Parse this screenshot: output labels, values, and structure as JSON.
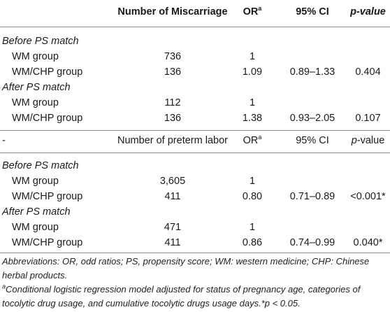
{
  "header": {
    "col1": "Number of Miscarriage",
    "col2": "OR",
    "col2_sup": "a",
    "col3": "95% CI",
    "col4": "p-value"
  },
  "miscarriage": {
    "before_label": "Before PS match",
    "before_rows": [
      {
        "group": "WM group",
        "n": "736",
        "or": "1",
        "ci": "",
        "p": ""
      },
      {
        "group": "WM/CHP group",
        "n": "136",
        "or": "1.09",
        "ci": "0.89–1.33",
        "p": "0.404"
      }
    ],
    "after_label": "After PS match",
    "after_rows": [
      {
        "group": "WM group",
        "n": "112",
        "or": "1",
        "ci": "",
        "p": ""
      },
      {
        "group": "WM/CHP group",
        "n": "136",
        "or": "1.38",
        "ci": "0.93–2.05",
        "p": "0.107"
      }
    ]
  },
  "subheader": {
    "col0": "-",
    "col1": "Number of preterm labor",
    "col2": "OR",
    "col2_sup": "a",
    "col3": "95% CI",
    "col4_p": "p",
    "col4_rest": "-value"
  },
  "preterm": {
    "before_label": "Before PS match",
    "before_rows": [
      {
        "group": "WM group",
        "n": "3,605",
        "or": "1",
        "ci": "",
        "p": ""
      },
      {
        "group": "WM/CHP group",
        "n": "411",
        "or": "0.80",
        "ci": "0.71–0.89",
        "p": "<0.001*"
      }
    ],
    "after_label": "After PS match",
    "after_rows": [
      {
        "group": "WM group",
        "n": "471",
        "or": "1",
        "ci": "",
        "p": ""
      },
      {
        "group": "WM/CHP group",
        "n": "411",
        "or": "0.86",
        "ci": "0.74–0.99",
        "p": "0.040*"
      }
    ]
  },
  "notes": {
    "abbreviations": "Abbreviations: OR, odd ratios; PS, propensity score; WM: western medicine; CHP: Chinese herbal products.",
    "footnote_sup": "a",
    "footnote": "Conditional logistic regression model adjusted for status of pregnancy age, categories of tocolytic drug usage, and cumulative tocolytic drugs usage days.*p < 0.05."
  }
}
